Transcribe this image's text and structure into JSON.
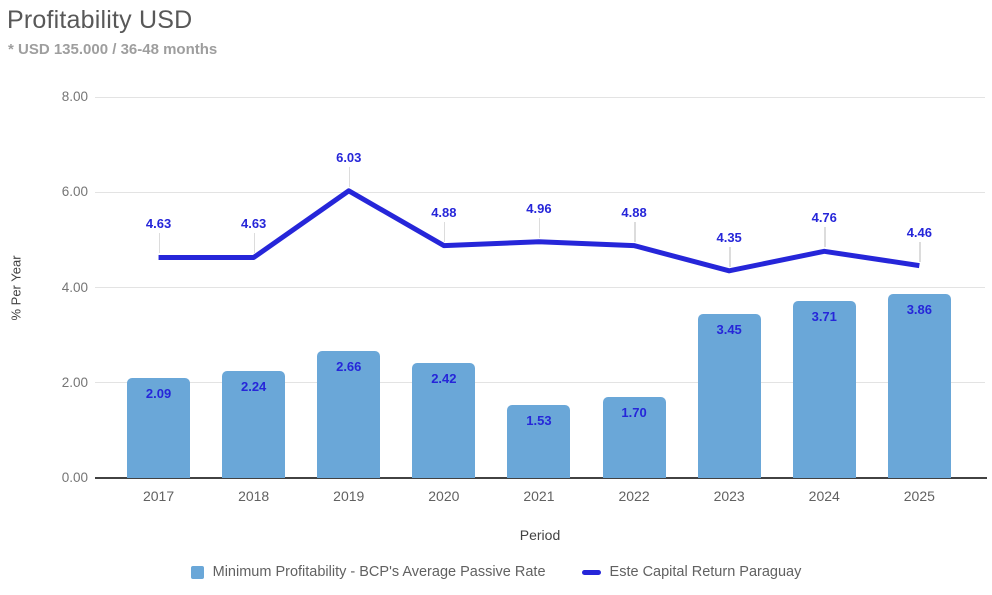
{
  "header": {
    "title": "Profitability USD",
    "subtitle": "* USD 135.000 / 36-48 months"
  },
  "colors": {
    "bar": "#6aa7d8",
    "line": "#2626d9",
    "grid": "#e3e3e3",
    "axis_text": "#757575"
  },
  "chart_data": {
    "type": "bar",
    "subtype": "combo-bar-line",
    "title": "Profitability USD",
    "subtitle": "* USD 135.000 / 36-48 months",
    "categories": [
      "2017",
      "2018",
      "2019",
      "2020",
      "2021",
      "2022",
      "2023",
      "2024",
      "2025"
    ],
    "series": [
      {
        "name": "Minimum Profitability - BCP's Average Passive Rate",
        "type": "bar",
        "color": "#6aa7d8",
        "values": [
          2.09,
          2.24,
          2.66,
          2.42,
          1.53,
          1.7,
          3.45,
          3.71,
          3.86
        ],
        "labels": [
          "2.09",
          "2.24",
          "2.66",
          "2.42",
          "1.53",
          "1.70",
          "3.45",
          "3.71",
          "3.86"
        ]
      },
      {
        "name": "Este Capital Return Paraguay",
        "type": "line",
        "color": "#2626d9",
        "values": [
          4.63,
          4.63,
          6.03,
          4.88,
          4.96,
          4.88,
          4.35,
          4.76,
          4.46
        ],
        "labels": [
          "4.63",
          "4.63",
          "6.03",
          "4.88",
          "4.96",
          "4.88",
          "4.35",
          "4.76",
          "4.46"
        ]
      }
    ],
    "xlabel": "Period",
    "ylabel": "% Per Year",
    "ylim": [
      0,
      8
    ],
    "yticks": [
      0,
      2,
      4,
      6,
      8
    ],
    "ytick_labels": [
      "0.00",
      "2.00",
      "4.00",
      "6.00",
      "8.00"
    ],
    "grid": true,
    "legend_position": "bottom"
  }
}
